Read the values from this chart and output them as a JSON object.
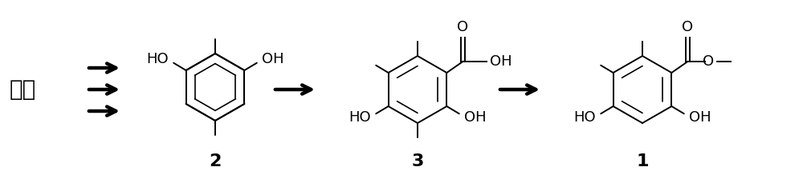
{
  "background_color": "#ffffff",
  "text_color": "#000000",
  "fig_width": 10.0,
  "fig_height": 2.24,
  "dpi": 100,
  "yuan_liao_text": "原料",
  "label2": "2",
  "label3": "3",
  "label1": "1"
}
